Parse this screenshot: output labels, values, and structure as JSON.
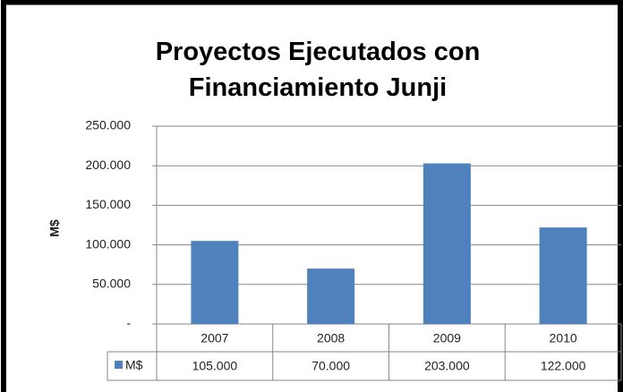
{
  "chart_data": {
    "type": "bar",
    "title": "Proyectos Ejecutados con Financiamiento Junji",
    "y_label": "M$",
    "categories": [
      "2007",
      "2008",
      "2009",
      "2010"
    ],
    "series": [
      {
        "name": "M$",
        "color": "#4f81bd",
        "values": [
          105000,
          70000,
          203000,
          122000
        ],
        "value_labels": [
          "105.000",
          "70.000",
          "203.000",
          "122.000"
        ]
      }
    ],
    "ylim": [
      0,
      250000
    ],
    "yticks": [
      {
        "value": 0,
        "label": "-"
      },
      {
        "value": 50000,
        "label": "50.000"
      },
      {
        "value": 100000,
        "label": "100.000"
      },
      {
        "value": 150000,
        "label": "150.000"
      },
      {
        "value": 200000,
        "label": "200.000"
      },
      {
        "value": 250000,
        "label": "250.000"
      }
    ],
    "grid": true
  }
}
